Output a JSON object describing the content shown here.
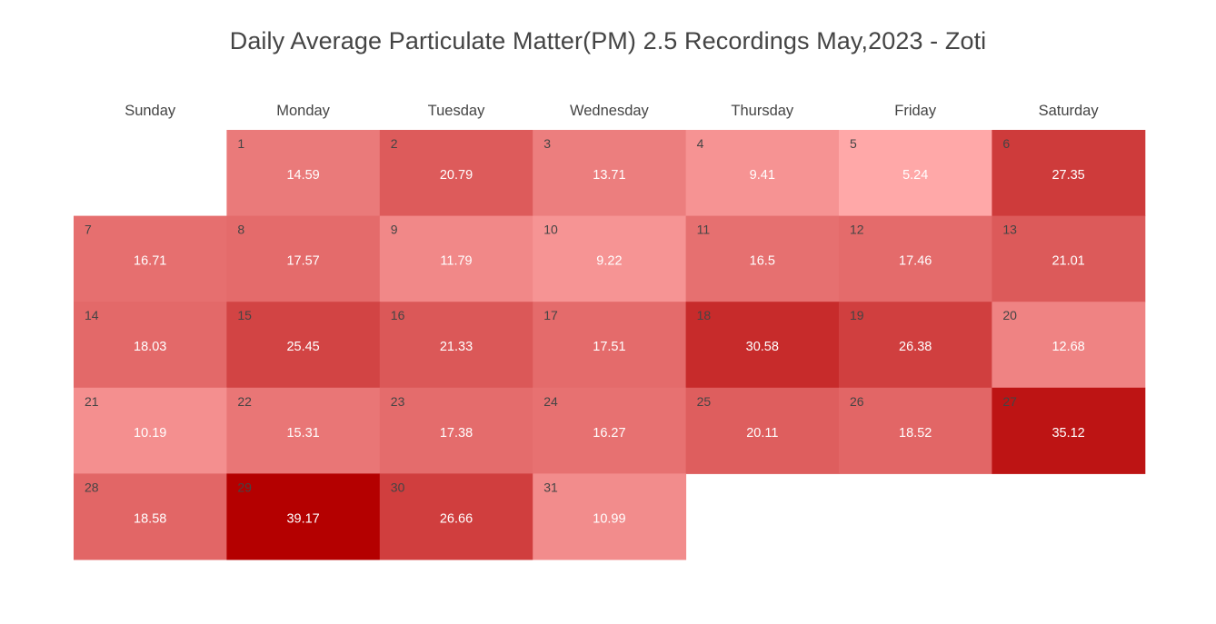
{
  "chart_data": {
    "type": "heatmap",
    "title": "Daily Average Particulate Matter(PM) 2.5 Recordings May,2023 - Zoti",
    "weekdays": [
      "Sunday",
      "Monday",
      "Tuesday",
      "Wednesday",
      "Thursday",
      "Friday",
      "Saturday"
    ],
    "first_weekday_index": 1,
    "days": [
      1,
      2,
      3,
      4,
      5,
      6,
      7,
      8,
      9,
      10,
      11,
      12,
      13,
      14,
      15,
      16,
      17,
      18,
      19,
      20,
      21,
      22,
      23,
      24,
      25,
      26,
      27,
      28,
      29,
      30,
      31
    ],
    "values": [
      14.59,
      20.79,
      13.71,
      9.41,
      5.24,
      27.35,
      16.71,
      17.57,
      11.79,
      9.22,
      16.5,
      17.46,
      21.01,
      18.03,
      25.45,
      21.33,
      17.51,
      30.58,
      26.38,
      12.68,
      10.19,
      15.31,
      17.38,
      16.27,
      20.11,
      18.52,
      35.12,
      18.58,
      39.17,
      26.66,
      10.99
    ],
    "value_labels": [
      "14.59",
      "20.79",
      "13.71",
      "9.41",
      "5.24",
      "27.35",
      "16.71",
      "17.57",
      "11.79",
      "9.22",
      "16.5",
      "17.46",
      "21.01",
      "18.03",
      "25.45",
      "21.33",
      "17.51",
      "30.58",
      "26.38",
      "12.68",
      "10.19",
      "15.31",
      "17.38",
      "16.27",
      "20.11",
      "18.52",
      "35.12",
      "18.58",
      "39.17",
      "26.66",
      "10.99"
    ],
    "color_low": "#ffa8a8",
    "color_high": "#b40000",
    "grid": false,
    "legend": "none"
  }
}
